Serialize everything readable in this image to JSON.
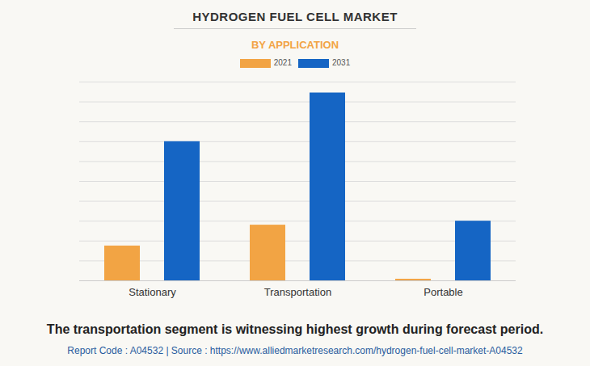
{
  "chart_data": {
    "type": "bar",
    "title": "HYDROGEN FUEL CELL MARKET",
    "subtitle": "BY APPLICATION",
    "categories": [
      "Stationary",
      "Transportation",
      "Portable"
    ],
    "series": [
      {
        "name": "2021",
        "color": "#f2a444",
        "values": [
          1.75,
          2.8,
          0.08
        ]
      },
      {
        "name": "2031",
        "color": "#1565c4",
        "values": [
          7.0,
          9.45,
          3.0
        ]
      }
    ],
    "ylim": [
      0,
      10
    ],
    "yticks": [
      0,
      1,
      2,
      3,
      4,
      5,
      6,
      7,
      8,
      9,
      10
    ],
    "grid": true,
    "tick_labels": "x",
    "legend": "top",
    "annotations": [
      "The transportation segment is witnessing highest growth during forecast period.",
      "Report Code : A04532  |  Source : https://www.alliedmarketresearch.com/hydrogen-fuel-cell-market-A04532"
    ]
  }
}
